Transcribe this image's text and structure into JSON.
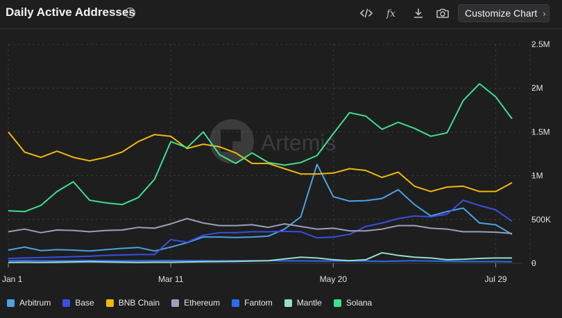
{
  "header": {
    "title": "Daily Active Addresses",
    "info_glyph": "i",
    "customize_label": "Customize Chart",
    "tools": [
      "embed-code-icon",
      "formula-icon",
      "download-icon",
      "camera-icon"
    ]
  },
  "watermark": "Artemis",
  "chart_data": {
    "type": "line",
    "title": "Daily Active Addresses",
    "x_tick_labels": [
      "Jan 1",
      "Mar 11",
      "May 20",
      "Jul 29"
    ],
    "x_ticks_at_week": [
      0,
      10,
      20,
      30
    ],
    "y_ticks": [
      0,
      500000,
      1000000,
      1500000,
      2000000,
      2500000
    ],
    "y_tick_labels": [
      "0",
      "500K",
      "1M",
      "1.5M",
      "2M",
      "2.5M"
    ],
    "ylim": [
      0,
      2500000
    ],
    "grid": true,
    "legend_position": "bottom",
    "x": [
      0,
      1,
      2,
      3,
      4,
      5,
      6,
      7,
      8,
      9,
      10,
      11,
      12,
      13,
      14,
      15,
      16,
      17,
      18,
      19,
      20,
      21,
      22,
      23,
      24,
      25,
      26,
      27,
      28,
      29,
      30,
      31
    ],
    "series": [
      {
        "name": "Arbitrum",
        "color": "#4ba3e3",
        "values": [
          150000,
          185000,
          145000,
          155000,
          150000,
          140000,
          155000,
          170000,
          180000,
          140000,
          185000,
          235000,
          300000,
          300000,
          295000,
          300000,
          310000,
          390000,
          530000,
          1130000,
          760000,
          710000,
          715000,
          740000,
          840000,
          670000,
          540000,
          590000,
          630000,
          460000,
          440000,
          330000
        ]
      },
      {
        "name": "Base",
        "color": "#3a4fe0",
        "values": [
          55000,
          60000,
          65000,
          70000,
          75000,
          80000,
          90000,
          95000,
          100000,
          100000,
          270000,
          240000,
          320000,
          350000,
          350000,
          360000,
          360000,
          365000,
          360000,
          290000,
          300000,
          330000,
          420000,
          460000,
          510000,
          540000,
          530000,
          560000,
          720000,
          660000,
          610000,
          480000
        ]
      },
      {
        "name": "BNB Chain",
        "color": "#f0b90b",
        "values": [
          1500000,
          1270000,
          1210000,
          1280000,
          1210000,
          1170000,
          1210000,
          1270000,
          1390000,
          1470000,
          1450000,
          1310000,
          1360000,
          1330000,
          1260000,
          1140000,
          1140000,
          1080000,
          1020000,
          1020000,
          1030000,
          1080000,
          1060000,
          980000,
          1040000,
          880000,
          820000,
          870000,
          880000,
          820000,
          820000,
          920000
        ]
      },
      {
        "name": "Ethereum",
        "color": "#9aa1b9",
        "values": [
          360000,
          390000,
          350000,
          380000,
          375000,
          360000,
          375000,
          380000,
          410000,
          400000,
          450000,
          510000,
          460000,
          430000,
          430000,
          440000,
          410000,
          450000,
          420000,
          390000,
          400000,
          370000,
          370000,
          390000,
          430000,
          430000,
          400000,
          390000,
          360000,
          360000,
          355000,
          340000
        ]
      },
      {
        "name": "Fantom",
        "color": "#2b6bf0",
        "values": [
          30000,
          32000,
          30000,
          28000,
          30000,
          32000,
          30000,
          28000,
          30000,
          30000,
          32000,
          30000,
          30000,
          28000,
          30000,
          30000,
          30000,
          28000,
          28000,
          26000,
          25000,
          28000,
          25000,
          22000,
          25000,
          30000,
          25000,
          22000,
          20000,
          20000,
          20000,
          18000
        ]
      },
      {
        "name": "Mantle",
        "color": "#9bdccb",
        "values": [
          10000,
          12000,
          10000,
          12000,
          15000,
          18000,
          15000,
          12000,
          10000,
          12000,
          12000,
          15000,
          18000,
          20000,
          22000,
          25000,
          30000,
          50000,
          70000,
          60000,
          40000,
          30000,
          40000,
          120000,
          90000,
          70000,
          60000,
          40000,
          45000,
          55000,
          60000,
          60000
        ]
      },
      {
        "name": "Solana",
        "color": "#3ee08c",
        "values": [
          600000,
          590000,
          660000,
          820000,
          930000,
          720000,
          690000,
          670000,
          750000,
          960000,
          1390000,
          1320000,
          1500000,
          1240000,
          1140000,
          1260000,
          1150000,
          1120000,
          1150000,
          1230000,
          1480000,
          1720000,
          1680000,
          1530000,
          1610000,
          1540000,
          1450000,
          1490000,
          1860000,
          2050000,
          1900000,
          1650000
        ]
      }
    ]
  }
}
